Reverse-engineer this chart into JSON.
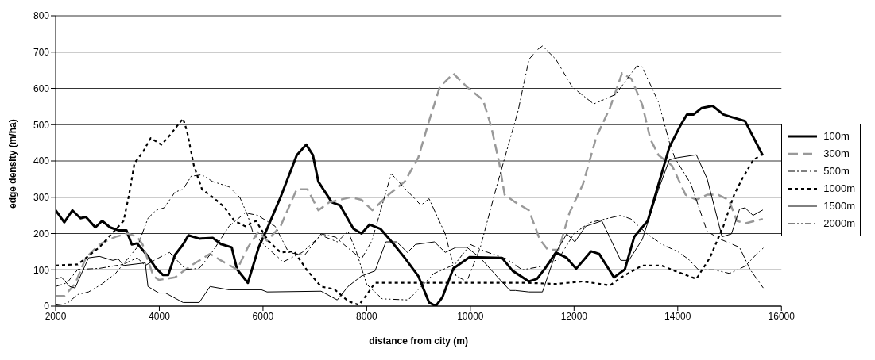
{
  "chart_data": {
    "type": "line",
    "xlabel": "distance from city (m)",
    "ylabel": "edge density (m/ha)",
    "xlim": [
      2000,
      16000
    ],
    "xticks": [
      2000,
      4000,
      6000,
      8000,
      10000,
      12000,
      14000,
      16000
    ],
    "ylim": [
      0,
      800
    ],
    "yticks": [
      0,
      100,
      200,
      300,
      400,
      500,
      600,
      700,
      800
    ],
    "grid": "y",
    "legend": "right",
    "marker": "none",
    "series": [
      {
        "name": "100m",
        "color": "#000000",
        "line_style": "solid",
        "x": [
          2000,
          2167,
          2323,
          2479,
          2583,
          2766,
          2896,
          3052,
          3208,
          3365,
          3469,
          3573,
          3781,
          3937,
          4068,
          4172,
          4302,
          4458,
          4562,
          4771,
          5031,
          5188,
          5396,
          5500,
          5708,
          5917,
          6078,
          6338,
          6651,
          6833,
          6963,
          7068,
          7328,
          7484,
          7745,
          7901,
          8057,
          8265,
          8526,
          8734,
          8995,
          9203,
          9333,
          9463,
          9672,
          9984,
          10609,
          10817,
          11130,
          11286,
          11442,
          11651,
          11859,
          12041,
          12328,
          12484,
          12770,
          12979,
          13161,
          13421,
          13630,
          13838,
          14046,
          14177,
          14307,
          14463,
          14672,
          14880,
          15036,
          15297,
          15453,
          15641
        ],
        "values": [
          264,
          231,
          264,
          242,
          246,
          217,
          235,
          217,
          209,
          209,
          170,
          173,
          137,
          104,
          86,
          86,
          141,
          170,
          195,
          186,
          188,
          171,
          162,
          101,
          64,
          162,
          213,
          300,
          416,
          445,
          416,
          343,
          286,
          278,
          213,
          200,
          225,
          213,
          170,
          133,
          83,
          10,
          0,
          25,
          104,
          135,
          133,
          97,
          68,
          75,
          104,
          148,
          133,
          103,
          151,
          144,
          79,
          101,
          191,
          235,
          336,
          438,
          496,
          528,
          528,
          546,
          552,
          528,
          521,
          510,
          467,
          415
        ]
      },
      {
        "name": "300m",
        "color": "#999999",
        "line_style": "dashed",
        "x": [
          2000,
          2167,
          2375,
          2583,
          2844,
          3156,
          3390,
          3573,
          3677,
          3885,
          3990,
          4302,
          4615,
          4979,
          5188,
          5500,
          5708,
          5917,
          6078,
          6338,
          6651,
          6859,
          7068,
          7276,
          7693,
          7901,
          8109,
          8422,
          8734,
          8995,
          9203,
          9411,
          9672,
          9932,
          10245,
          10400,
          10557,
          10661,
          10869,
          11130,
          11338,
          11494,
          11703,
          11911,
          12172,
          12432,
          12692,
          12926,
          13109,
          13317,
          13474,
          13630,
          13890,
          14151,
          14359,
          14567,
          14776,
          14984,
          15140,
          15297,
          15641
        ],
        "values": [
          28,
          28,
          61,
          133,
          170,
          191,
          200,
          191,
          170,
          83,
          72,
          79,
          112,
          144,
          126,
          101,
          162,
          206,
          180,
          220,
          322,
          322,
          264,
          286,
          300,
          293,
          264,
          307,
          343,
          409,
          510,
          604,
          641,
          604,
          568,
          496,
          394,
          307,
          286,
          264,
          184,
          155,
          155,
          257,
          336,
          467,
          546,
          642,
          626,
          554,
          459,
          416,
          387,
          307,
          293,
          307,
          307,
          293,
          235,
          228,
          240
        ]
      },
      {
        "name": "500m",
        "color": "#000000",
        "line_style": "dashdot",
        "x": [
          2000,
          2219,
          2427,
          2844,
          3300,
          3573,
          3729,
          3990,
          4198,
          4510,
          4771,
          5031,
          5344,
          5656,
          5900,
          6234,
          6495,
          6800,
          7120,
          7400,
          7640,
          7900,
          8100,
          8474,
          8700,
          9046,
          9203,
          9515,
          9724,
          9932,
          10192,
          10505,
          10922,
          11130,
          11286,
          11390,
          11650,
          11963,
          12380,
          12797,
          13213,
          13317,
          13630,
          13838,
          13942,
          14255,
          14567,
          14828,
          15192,
          15400,
          15650
        ],
        "values": [
          54,
          64,
          101,
          104,
          115,
          133,
          112,
          133,
          148,
          101,
          104,
          151,
          220,
          257,
          250,
          220,
          148,
          140,
          199,
          190,
          160,
          130,
          180,
          365,
          330,
          278,
          296,
          199,
          83,
          68,
          162,
          329,
          539,
          680,
          706,
          717,
          680,
          604,
          557,
          583,
          662,
          659,
          561,
          452,
          409,
          336,
          206,
          184,
          162,
          100,
          50
        ]
      },
      {
        "name": "1000m",
        "color": "#000000",
        "line_style": "dotted",
        "x": [
          2000,
          2427,
          2844,
          3312,
          3417,
          3521,
          3677,
          3833,
          4040,
          4198,
          4458,
          4536,
          4667,
          4823,
          5031,
          5240,
          5448,
          5656,
          5865,
          6100,
          6338,
          6599,
          6859,
          7120,
          7380,
          7641,
          7849,
          8005,
          8161,
          8682,
          9463,
          9984,
          10505,
          11100,
          11651,
          12172,
          12692,
          12953,
          13317,
          13682,
          13942,
          14359,
          14619,
          14880,
          15088,
          15244,
          15453,
          15640
        ],
        "values": [
          112,
          115,
          162,
          235,
          307,
          394,
          423,
          463,
          445,
          470,
          517,
          481,
          387,
          322,
          300,
          275,
          235,
          220,
          235,
          180,
          148,
          151,
          97,
          54,
          46,
          14,
          3,
          32,
          64,
          64,
          64,
          64,
          64,
          64,
          61,
          68,
          57,
          83,
          112,
          112,
          97,
          75,
          133,
          220,
          307,
          351,
          402,
          420
        ]
      },
      {
        "name": "1500m",
        "color": "#000000",
        "line_style": "solid",
        "x": [
          2000,
          2115,
          2271,
          2375,
          2635,
          2844,
          3104,
          3208,
          3312,
          3729,
          3781,
          3990,
          4120,
          4458,
          4771,
          4979,
          5344,
          5969,
          6078,
          7120,
          7432,
          7640,
          7901,
          8161,
          8370,
          8578,
          8786,
          8942,
          9307,
          9515,
          9724,
          9932,
          10192,
          10505,
          10765,
          10869,
          11130,
          11390,
          11651,
          11859,
          12015,
          12224,
          12536,
          12900,
          13057,
          13317,
          13630,
          13838,
          13994,
          14359,
          14567,
          14776,
          14854,
          15036,
          15192,
          15297,
          15453,
          15641
        ],
        "values": [
          75,
          79,
          54,
          50,
          133,
          137,
          126,
          130,
          112,
          119,
          54,
          36,
          36,
          10,
          10,
          54,
          45,
          45,
          39,
          41,
          17,
          54,
          83,
          97,
          177,
          177,
          148,
          170,
          177,
          148,
          162,
          162,
          133,
          83,
          43,
          43,
          39,
          39,
          148,
          199,
          177,
          220,
          235,
          126,
          126,
          184,
          322,
          403,
          409,
          417,
          351,
          235,
          191,
          199,
          267,
          271,
          250,
          265
        ]
      },
      {
        "name": "2000m",
        "color": "#000000",
        "line_style": "dashdotdot",
        "x": [
          2000,
          2219,
          2427,
          2635,
          2896,
          3156,
          3365,
          3573,
          3781,
          3937,
          4094,
          4302,
          4458,
          4615,
          4823,
          5031,
          5344,
          5552,
          5708,
          5813,
          6073,
          6390,
          6755,
          7120,
          7432,
          7640,
          7800,
          8000,
          8300,
          8800,
          9000,
          9300,
          9700,
          10000,
          10300,
          10700,
          11000,
          11400,
          11700,
          12000,
          12300,
          12600,
          12900,
          13100,
          13400,
          13700,
          14000,
          14200,
          14400,
          14700,
          15000,
          15300,
          15500,
          15650
        ],
        "values": [
          3,
          7,
          32,
          39,
          61,
          90,
          126,
          162,
          242,
          264,
          271,
          314,
          322,
          358,
          362,
          343,
          329,
          300,
          249,
          199,
          162,
          122,
          148,
          195,
          177,
          206,
          150,
          60,
          20,
          17,
          46,
          90,
          115,
          170,
          150,
          130,
          100,
          110,
          130,
          200,
          230,
          240,
          250,
          240,
          200,
          170,
          150,
          130,
          100,
          100,
          90,
          110,
          140,
          160
        ]
      }
    ]
  }
}
